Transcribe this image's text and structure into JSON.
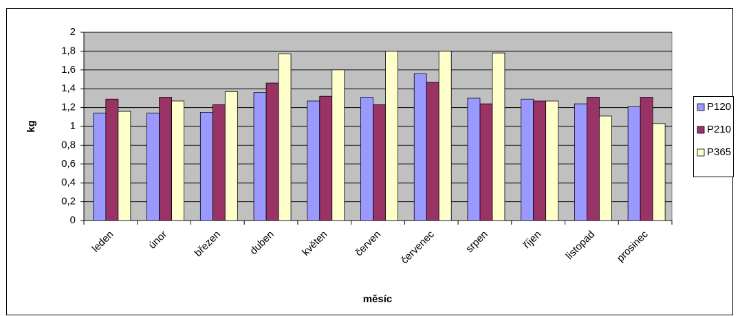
{
  "chart_data": {
    "type": "bar",
    "x_label": "měsíc",
    "y_label": "kg",
    "categories": [
      "leden",
      "únor",
      "březen",
      "duben",
      "květen",
      "červen",
      "červenec",
      "srpen",
      "říjen",
      "listopad",
      "prosinec"
    ],
    "series": [
      {
        "name": "P120",
        "color": "#9999ff",
        "values": [
          1.14,
          1.14,
          1.15,
          1.36,
          1.27,
          1.31,
          1.56,
          1.3,
          1.29,
          1.24,
          1.21
        ]
      },
      {
        "name": "P210",
        "color": "#993366",
        "values": [
          1.29,
          1.31,
          1.23,
          1.46,
          1.32,
          1.23,
          1.47,
          1.24,
          1.27,
          1.31,
          1.31
        ]
      },
      {
        "name": "P365",
        "color": "#ffffcc",
        "values": [
          1.16,
          1.27,
          1.37,
          1.77,
          1.6,
          1.8,
          1.8,
          1.78,
          1.27,
          1.11,
          1.03
        ]
      }
    ],
    "ylim": [
      0,
      2
    ],
    "yticks": [
      0,
      {
        "value": 0.2,
        "label": "0,2"
      },
      {
        "value": 0.4,
        "label": "0,4"
      },
      {
        "value": 0.6,
        "label": "0,6"
      },
      {
        "value": 0.8,
        "label": "0,8"
      },
      1,
      {
        "value": 1.2,
        "label": "1,2"
      },
      {
        "value": 1.4,
        "label": "1,4"
      },
      {
        "value": 1.6,
        "label": "1,6"
      },
      {
        "value": 1.8,
        "label": "1,8"
      },
      2
    ],
    "grid": true,
    "plot_background": "#c0c0c0",
    "legend": "right"
  }
}
